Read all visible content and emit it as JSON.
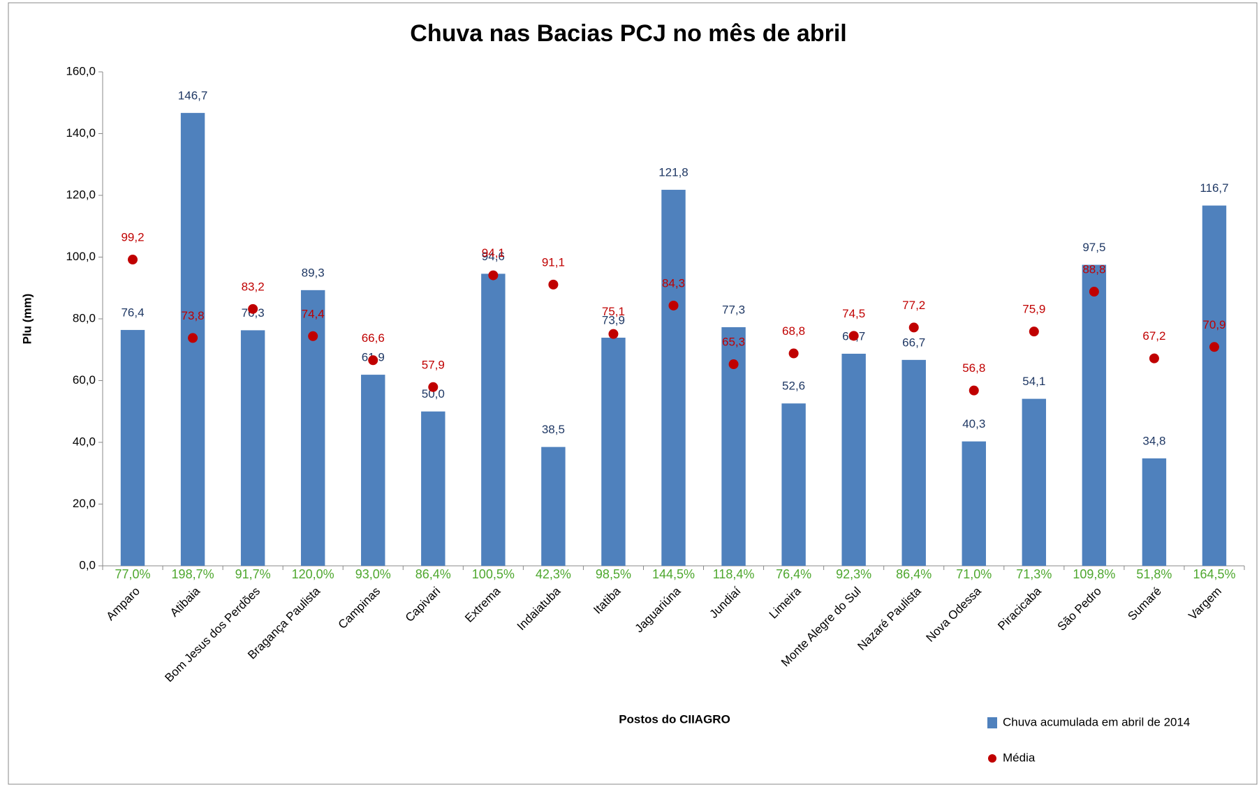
{
  "chart_data": {
    "type": "bar",
    "title": "Chuva nas Bacias PCJ no mês de abril",
    "ylabel": "Plu (mm)",
    "xlabel": "Postos do CIIAGRO",
    "categories": [
      "Amparo",
      "Atibaia",
      "Bom Jesus dos Perdões",
      "Bragança Paulista",
      "Campinas",
      "Capivari",
      "Extrema",
      "Indaiatuba",
      "Itatiba",
      "Jaguariúna",
      "Jundiaí",
      "Limeira",
      "Monte Alegre do Sul",
      "Nazaré Paulista",
      "Nova Odessa",
      "Piracicaba",
      "São Pedro",
      "Sumaré",
      "Vargem"
    ],
    "series": [
      {
        "name": "Chuva acumulada em abril de 2014",
        "type": "bar",
        "color": "#4f81bd",
        "values": [
          76.4,
          146.7,
          76.3,
          89.3,
          61.9,
          50.0,
          94.6,
          38.5,
          73.9,
          121.8,
          77.3,
          52.6,
          68.7,
          66.7,
          40.3,
          54.1,
          97.5,
          34.8,
          116.7
        ],
        "value_labels": [
          "76,4",
          "146,7",
          "76,3",
          "89,3",
          "61,9",
          "50,0",
          "94,6",
          "38,5",
          "73,9",
          "121,8",
          "77,3",
          "52,6",
          "68,7",
          "66,7",
          "40,3",
          "54,1",
          "97,5",
          "34,8",
          "116,7"
        ]
      },
      {
        "name": "Média",
        "type": "scatter",
        "color": "#c00000",
        "values": [
          99.2,
          73.8,
          83.2,
          74.4,
          66.6,
          57.9,
          94.1,
          91.1,
          75.1,
          84.3,
          65.3,
          68.8,
          74.5,
          77.2,
          56.8,
          75.9,
          88.8,
          67.2,
          70.9
        ],
        "value_labels": [
          "99,2",
          "73,8",
          "83,2",
          "74,4",
          "66,6",
          "57,9",
          "94,1",
          "91,1",
          "75,1",
          "84,3",
          "65,3",
          "68,8",
          "74,5",
          "77,2",
          "56,8",
          "75,9",
          "88,8",
          "67,2",
          "70,9"
        ]
      }
    ],
    "percent_labels": [
      "77,0%",
      "198,7%",
      "91,7%",
      "120,0%",
      "93,0%",
      "86,4%",
      "100,5%",
      "42,3%",
      "98,5%",
      "144,5%",
      "118,4%",
      "76,4%",
      "92,3%",
      "86,4%",
      "71,0%",
      "71,3%",
      "109,8%",
      "51,8%",
      "164,5%"
    ],
    "percent_color": "#4ea72e",
    "ylim": [
      0,
      160
    ],
    "yticks": [
      {
        "value": 0,
        "label": "0,0"
      },
      {
        "value": 20,
        "label": "20,0"
      },
      {
        "value": 40,
        "label": "40,0"
      },
      {
        "value": 60,
        "label": "60,0"
      },
      {
        "value": 80,
        "label": "80,0"
      },
      {
        "value": 100,
        "label": "100,0"
      },
      {
        "value": 120,
        "label": "120,0"
      },
      {
        "value": 140,
        "label": "140,0"
      },
      {
        "value": 160,
        "label": "160,0"
      }
    ],
    "grid": false,
    "legend": "bottom-right"
  }
}
